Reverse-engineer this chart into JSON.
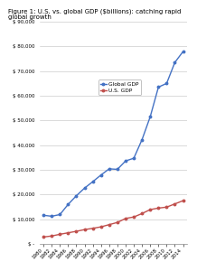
{
  "title": "Figure 1: U.S. vs. global GDP ($billions): catching rapid global growth",
  "years": [
    1980,
    1982,
    1984,
    1986,
    1988,
    1990,
    1992,
    1994,
    1996,
    1998,
    2000,
    2002,
    2004,
    2006,
    2008,
    2010,
    2012,
    2014
  ],
  "global_gdp": [
    11600,
    11200,
    11900,
    16000,
    19500,
    22600,
    25200,
    27900,
    30400,
    30200,
    33600,
    34700,
    42200,
    51500,
    63500,
    65000,
    73500,
    77900
  ],
  "us_gdp": [
    2800,
    3200,
    3900,
    4500,
    5100,
    5800,
    6300,
    6900,
    7800,
    8700,
    10300,
    10900,
    12300,
    13900,
    14500,
    14900,
    16200,
    17500
  ],
  "global_color": "#4472C4",
  "us_color": "#C0504D",
  "background_color": "#FFFFFF",
  "grid_color": "#BFBFBF",
  "ylim": [
    0,
    90000
  ],
  "yticks": [
    0,
    10000,
    20000,
    30000,
    40000,
    50000,
    60000,
    70000,
    80000,
    90000
  ],
  "ytick_labels": [
    "$ -",
    "$ 10,000",
    "$ 20,000",
    "$ 30,000",
    "$ 40,000",
    "$ 50,000",
    "$ 60,000",
    "$ 70,000",
    "$ 80,000",
    "$ 90,000"
  ],
  "xtick_years": [
    1980,
    1982,
    1984,
    1986,
    1988,
    1990,
    1992,
    1994,
    1996,
    1998,
    2000,
    2002,
    2004,
    2006,
    2008,
    2010,
    2012,
    2014
  ],
  "legend_labels": [
    "Global GDP",
    "U.S. GDP"
  ],
  "title_fontsize": 5.0,
  "axis_fontsize": 4.0,
  "legend_fontsize": 4.2,
  "line_width": 1.0,
  "marker_size": 1.8
}
